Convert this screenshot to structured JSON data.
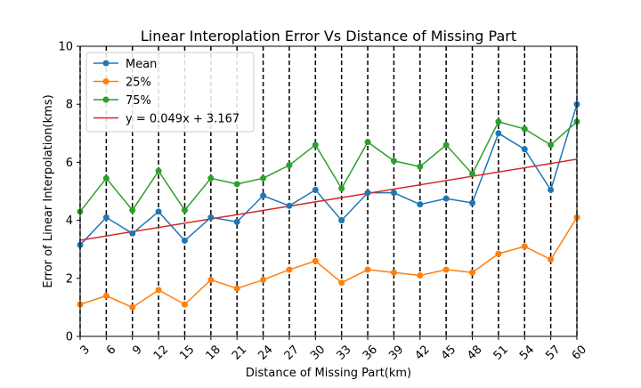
{
  "chart_data": {
    "type": "line",
    "title": "Linear Interoplation Error Vs Distance of Missing Part",
    "xlabel": "Distance of Missing Part(km)",
    "ylabel": "Error of Linear Interpolation(kms)",
    "xlim": [
      3,
      60
    ],
    "ylim": [
      0,
      10
    ],
    "x": [
      3,
      6,
      9,
      12,
      15,
      18,
      21,
      24,
      27,
      30,
      33,
      36,
      39,
      42,
      45,
      48,
      51,
      54,
      57,
      60
    ],
    "xticks": [
      "3",
      "6",
      "9",
      "12",
      "15",
      "18",
      "21",
      "24",
      "27",
      "30",
      "33",
      "36",
      "39",
      "42",
      "45",
      "48",
      "51",
      "54",
      "57",
      "60"
    ],
    "yticks": [
      "0",
      "2",
      "4",
      "6",
      "8",
      "10"
    ],
    "ytick_values": [
      0,
      2,
      4,
      6,
      8,
      10
    ],
    "grid": false,
    "vertical_dashed_lines_at_x": true,
    "legend_position": "top-left",
    "series": [
      {
        "name": "Mean",
        "color": "#1f77b4",
        "marker": "circle",
        "values": [
          3.15,
          4.1,
          3.55,
          4.3,
          3.3,
          4.1,
          3.95,
          4.85,
          4.5,
          5.05,
          4.0,
          4.95,
          4.95,
          4.55,
          4.75,
          4.6,
          7.0,
          6.45,
          5.05,
          8.0
        ]
      },
      {
        "name": "25%",
        "color": "#ff7f0e",
        "marker": "circle",
        "values": [
          1.1,
          1.4,
          1.0,
          1.6,
          1.1,
          1.95,
          1.65,
          1.95,
          2.3,
          2.6,
          1.85,
          2.3,
          2.2,
          2.1,
          2.3,
          2.2,
          2.85,
          3.1,
          2.65,
          4.1
        ]
      },
      {
        "name": "75%",
        "color": "#2ca02c",
        "marker": "circle",
        "values": [
          4.3,
          5.45,
          4.35,
          5.7,
          4.35,
          5.45,
          5.25,
          5.45,
          5.9,
          6.6,
          5.1,
          6.7,
          6.05,
          5.85,
          6.6,
          5.6,
          7.4,
          7.15,
          6.6,
          7.4
        ]
      },
      {
        "name": "y = 0.049x + 3.167",
        "color": "#d62728",
        "marker": "none",
        "fit": {
          "slope": 0.049,
          "intercept": 3.167
        }
      }
    ]
  }
}
